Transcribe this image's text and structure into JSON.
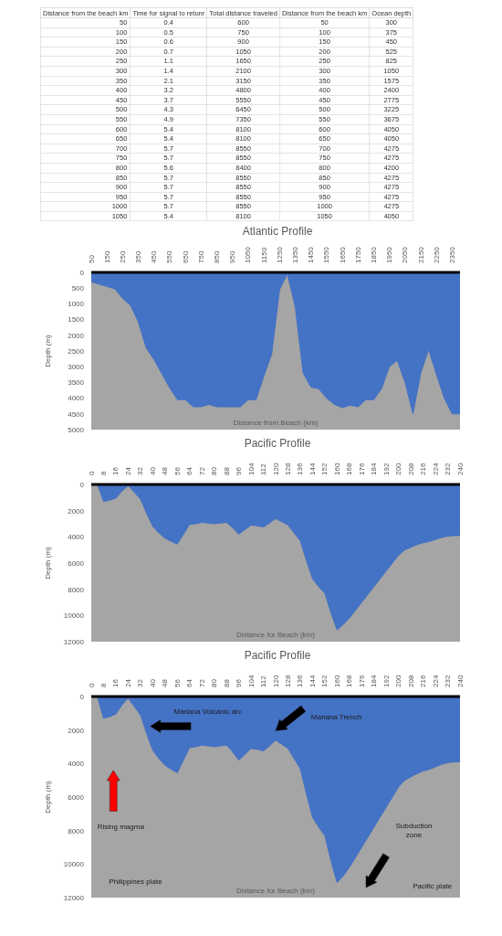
{
  "chart_data": [
    {
      "type": "heatmap",
      "data_labels": true,
      "ylabel": "Distance from the beach km",
      "categories": [
        "Time for signal to retunr",
        "Total distance traveled",
        "Distance from the beach km",
        "Ocean depth"
      ],
      "y_categories": [
        "50",
        "100",
        "150",
        "200",
        "250",
        "300",
        "350",
        "400",
        "450",
        "500",
        "550",
        "600",
        "650",
        "700",
        "750",
        "800",
        "850",
        "900",
        "950",
        "1000",
        "1050"
      ],
      "cells": [
        [
          0.4,
          600,
          50,
          300
        ],
        [
          0.5,
          750,
          100,
          375
        ],
        [
          0.6,
          900,
          150,
          450
        ],
        [
          0.7,
          1050,
          200,
          525
        ],
        [
          1.1,
          1650,
          250,
          825
        ],
        [
          1.4,
          2100,
          300,
          1050
        ],
        [
          2.1,
          3150,
          350,
          1575
        ],
        [
          3.2,
          4800,
          400,
          2400
        ],
        [
          3.7,
          5550,
          450,
          2775
        ],
        [
          4.3,
          6450,
          500,
          3225
        ],
        [
          4.9,
          7350,
          550,
          3675
        ],
        [
          5.4,
          8100,
          600,
          4050
        ],
        [
          5.4,
          8100,
          650,
          4050
        ],
        [
          5.7,
          8550,
          700,
          4275
        ],
        [
          5.7,
          8550,
          750,
          4275
        ],
        [
          5.6,
          8400,
          800,
          4200
        ],
        [
          5.7,
          8550,
          850,
          4275
        ],
        [
          5.7,
          8550,
          900,
          4275
        ],
        [
          5.7,
          8550,
          950,
          4275
        ],
        [
          5.7,
          8550,
          1000,
          4275
        ],
        [
          5.4,
          8100,
          1050,
          4050
        ]
      ]
    },
    {
      "type": "area",
      "title": "Atlantic Profile",
      "xlabel": "Distance from Beach (km)",
      "ylabel": "Depth (m)",
      "categories": [
        "50",
        null,
        "150",
        null,
        "250",
        null,
        "350",
        null,
        "450",
        null,
        "550",
        null,
        "650",
        null,
        "750",
        null,
        "850",
        null,
        "950",
        null,
        "1050",
        null,
        "1150",
        null,
        "1250",
        null,
        "1350",
        null,
        "1450",
        null,
        "1550",
        null,
        "1650",
        null,
        "1750",
        null,
        "1850",
        null,
        "1950",
        null,
        "2050",
        null,
        "2150",
        null,
        "2250",
        null,
        "2350",
        null
      ],
      "values": [
        300,
        375,
        450,
        525,
        825,
        1050,
        1575,
        2400,
        2775,
        3225,
        3675,
        4050,
        4050,
        4275,
        4275,
        4200,
        4275,
        4275,
        4275,
        4275,
        4050,
        4050,
        3300,
        2600,
        550,
        50,
        1100,
        3200,
        3650,
        3700,
        4000,
        4200,
        4300,
        4225,
        4275,
        4050,
        4050,
        3700,
        3000,
        2800,
        3500,
        4500,
        3200,
        2450,
        3250,
        4000,
        4500,
        4500
      ],
      "color": "#4472c4",
      "ylim": [
        5000,
        0
      ],
      "yticks": [
        0,
        500,
        1000,
        1500,
        2000,
        2500,
        3000,
        3500,
        4000,
        4500,
        5000
      ]
    },
    {
      "type": "area",
      "title": "Pacific Profile",
      "xlabel": "Distance for Beach (km)",
      "ylabel": "Depth (m)",
      "categories": [
        "0",
        null,
        "8",
        null,
        "16",
        null,
        "24",
        null,
        "32",
        null,
        "40",
        null,
        "48",
        null,
        "56",
        null,
        "64",
        null,
        "72",
        null,
        "80",
        null,
        "88",
        null,
        "96",
        null,
        "104",
        null,
        "112",
        null,
        "120",
        null,
        "128",
        null,
        "136",
        null,
        "144",
        null,
        "152",
        null,
        "160",
        null,
        "168",
        null,
        "176",
        null,
        "184",
        null,
        "192",
        null,
        "200",
        null,
        "208",
        null,
        "216",
        null,
        "224",
        null,
        "232",
        null,
        "240"
      ],
      "values": [
        0,
        0,
        1300,
        1200,
        1050,
        500,
        100,
        600,
        1100,
        2200,
        3200,
        3700,
        4100,
        4350,
        4550,
        3800,
        3050,
        3000,
        2900,
        2950,
        3000,
        2950,
        2900,
        3300,
        3800,
        3450,
        3100,
        3150,
        3250,
        2950,
        2600,
        2850,
        3100,
        3700,
        4300,
        5800,
        7200,
        7800,
        8300,
        9800,
        11100,
        10700,
        10200,
        9600,
        9000,
        8400,
        7800,
        7200,
        6600,
        6000,
        5400,
        5000,
        4800,
        4600,
        4450,
        4350,
        4200,
        4050,
        3950,
        3900,
        3900
      ],
      "color": "#4472c4",
      "ylim": [
        12000,
        0
      ],
      "yticks": [
        0,
        2000,
        4000,
        6000,
        8000,
        10000,
        12000
      ]
    },
    {
      "type": "area",
      "title": "Pacific Profile",
      "xlabel": "Distance for Beach (km)",
      "ylabel": "Depth (m)",
      "categories": [
        "0",
        null,
        "8",
        null,
        "16",
        null,
        "24",
        null,
        "32",
        null,
        "40",
        null,
        "48",
        null,
        "56",
        null,
        "64",
        null,
        "72",
        null,
        "80",
        null,
        "88",
        null,
        "96",
        null,
        "104",
        null,
        "112",
        null,
        "120",
        null,
        "128",
        null,
        "136",
        null,
        "144",
        null,
        "152",
        null,
        "160",
        null,
        "168",
        null,
        "176",
        null,
        "184",
        null,
        "192",
        null,
        "200",
        null,
        "208",
        null,
        "216",
        null,
        "224",
        null,
        "232",
        null,
        "240"
      ],
      "values": [
        0,
        0,
        1300,
        1200,
        1050,
        500,
        100,
        600,
        1100,
        2200,
        3200,
        3700,
        4100,
        4350,
        4550,
        3800,
        3050,
        3000,
        2900,
        2950,
        3000,
        2950,
        2900,
        3300,
        3800,
        3450,
        3100,
        3150,
        3250,
        2950,
        2600,
        2850,
        3100,
        3700,
        4300,
        5800,
        7200,
        7800,
        8300,
        9800,
        11100,
        10700,
        10200,
        9600,
        9000,
        8400,
        7800,
        7200,
        6600,
        6000,
        5400,
        5000,
        4800,
        4600,
        4450,
        4350,
        4200,
        4050,
        3950,
        3900,
        3900
      ],
      "color": "#4472c4",
      "ylim": [
        12000,
        0
      ],
      "yticks": [
        0,
        2000,
        4000,
        6000,
        8000,
        10000,
        12000
      ],
      "annotations": [
        "Mariana Volcanic arc",
        "Mariana Trench",
        "Rising magma",
        "Subduction zone",
        "Philippines plate",
        "Pacific plate"
      ]
    }
  ]
}
